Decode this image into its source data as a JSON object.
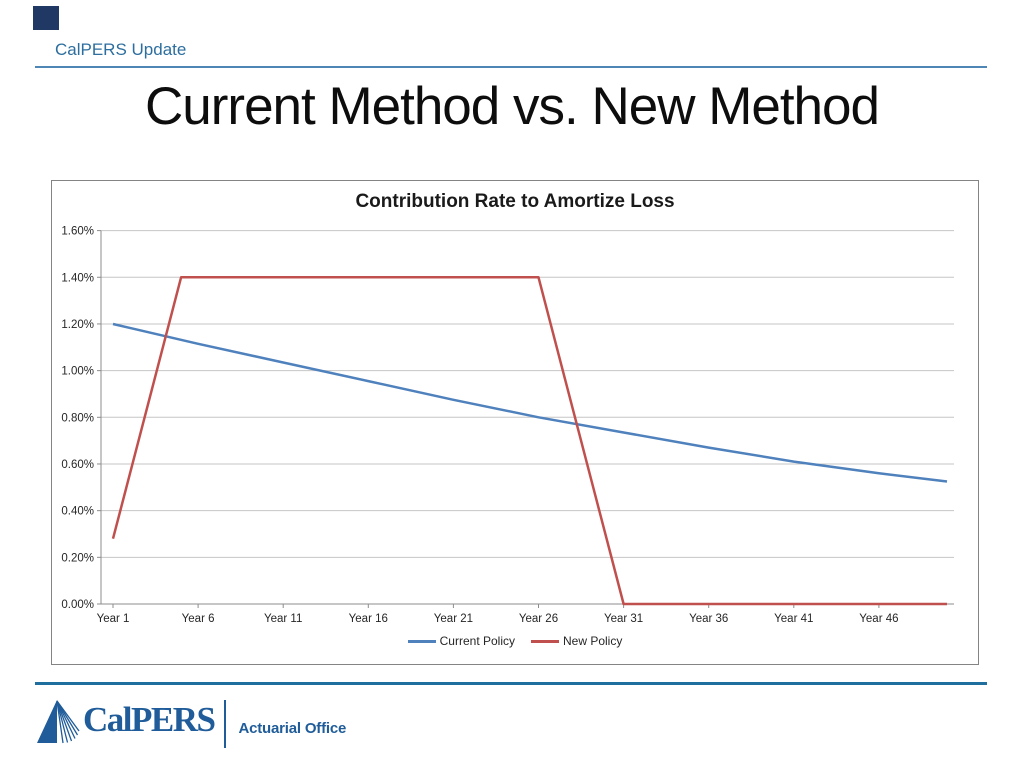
{
  "slide": {
    "header": {
      "label": "CalPERS Update"
    },
    "title": "Current Method vs. New Method",
    "footer": {
      "brand": "CalPERS",
      "department": "Actuarial Office"
    }
  },
  "colors": {
    "header_text": "#2C6E9F",
    "header_line": "#4E86B5",
    "corner_square": "#1F3864",
    "footer_line": "#1E6F9E",
    "logo_blue": "#1F5C99",
    "chart_border": "#848484",
    "gridline": "#C6C6C6",
    "axis": "#8C8C8C",
    "tick_text": "#262626",
    "current_policy": "#4F81BD",
    "new_policy": "#C0504D"
  },
  "chart_data": {
    "type": "line",
    "title": "Contribution Rate to Amortize Loss",
    "xlabel": "",
    "ylabel": "",
    "x_range": [
      1,
      50
    ],
    "ylim": [
      0,
      1.6
    ],
    "y_unit": "%",
    "grid": true,
    "legend_position": "bottom",
    "x_tick_years": [
      1,
      6,
      11,
      16,
      21,
      26,
      31,
      36,
      41,
      46
    ],
    "x_tick_labels": [
      "Year 1",
      "Year 6",
      "Year 11",
      "Year 16",
      "Year 21",
      "Year 26",
      "Year 31",
      "Year 36",
      "Year 41",
      "Year 46"
    ],
    "y_tick_values": [
      0.0,
      0.2,
      0.4,
      0.6,
      0.8,
      1.0,
      1.2,
      1.4,
      1.6
    ],
    "y_tick_labels": [
      "0.00%",
      "0.20%",
      "0.40%",
      "0.60%",
      "0.80%",
      "1.00%",
      "1.20%",
      "1.40%",
      "1.60%"
    ],
    "series": [
      {
        "name": "Current Policy",
        "color": "#4F81BD",
        "points": [
          [
            1,
            1.2
          ],
          [
            6,
            1.115
          ],
          [
            11,
            1.035
          ],
          [
            16,
            0.955
          ],
          [
            21,
            0.875
          ],
          [
            26,
            0.8
          ],
          [
            31,
            0.735
          ],
          [
            36,
            0.67
          ],
          [
            41,
            0.61
          ],
          [
            46,
            0.56
          ],
          [
            50,
            0.525
          ]
        ]
      },
      {
        "name": "New Policy",
        "color": "#C0504D",
        "points": [
          [
            1,
            0.28
          ],
          [
            5,
            1.4
          ],
          [
            26,
            1.4
          ],
          [
            31,
            0.0
          ],
          [
            50,
            0.0
          ]
        ]
      }
    ]
  }
}
